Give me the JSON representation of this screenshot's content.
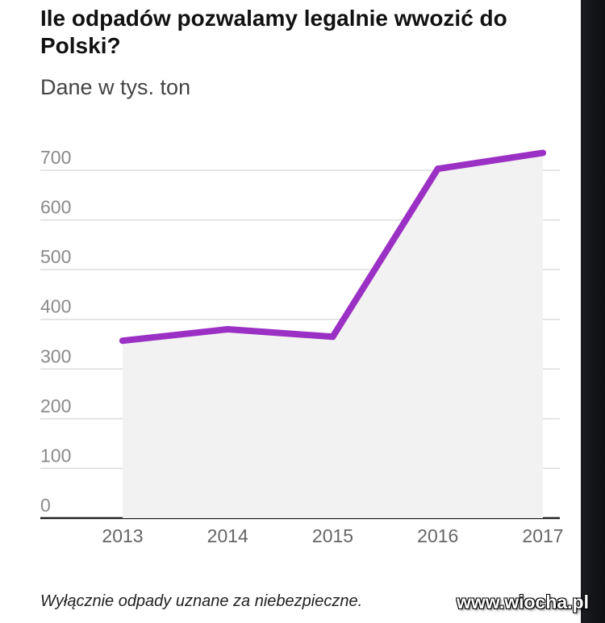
{
  "title": "Ile odpadów pozwalamy legalnie wwozić do Polski?",
  "subtitle": "Dane w tys. ton",
  "footnote": "Wyłącznie odpady uznane za niebezpieczne.",
  "watermark": "www.wiocha.pl",
  "colors": {
    "line": "#9b30c4",
    "area": "#f2f2f2",
    "grid": "#dddddd",
    "baseline": "#222222"
  },
  "chart_data": {
    "type": "line",
    "categories": [
      "2013",
      "2014",
      "2015",
      "2016",
      "2017"
    ],
    "series": [
      {
        "values": [
          357,
          380,
          365,
          703,
          735
        ]
      }
    ],
    "ylim": [
      0,
      700
    ],
    "yticks": [
      "0",
      "100",
      "200",
      "300",
      "400",
      "500",
      "600",
      "700"
    ],
    "grid": true,
    "area_fill": true,
    "legend": "none"
  }
}
